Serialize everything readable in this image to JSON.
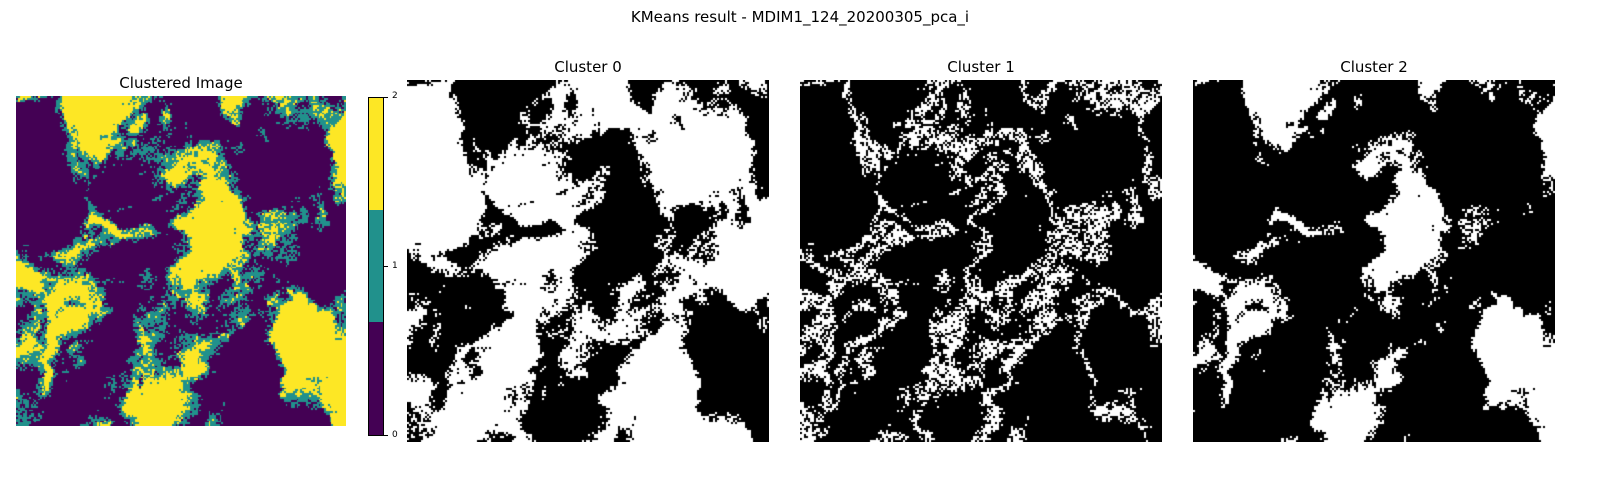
{
  "figure": {
    "suptitle": "KMeans result - MDIM1_124_20200305_pca_i"
  },
  "chart_data": [
    {
      "type": "heatmap",
      "title": "Clustered Image",
      "value_range": [
        0,
        2
      ],
      "n_clusters": 3,
      "axes_visible": false,
      "colorbar": {
        "ticks": [
          "0",
          "1",
          "2"
        ],
        "colors": [
          "#440154",
          "#21918c",
          "#fde725"
        ]
      },
      "approx_cluster_fraction": [
        0.55,
        0.2,
        0.25
      ]
    },
    {
      "type": "heatmap",
      "title": "Cluster 0",
      "binary_mask_cluster": 0,
      "axes_visible": false,
      "colors": {
        "in_cluster": "#ffffff",
        "other": "#000000"
      }
    },
    {
      "type": "heatmap",
      "title": "Cluster 1",
      "binary_mask_cluster": 1,
      "axes_visible": false,
      "colors": {
        "in_cluster": "#ffffff",
        "other": "#000000"
      }
    },
    {
      "type": "heatmap",
      "title": "Cluster 2",
      "binary_mask_cluster": 2,
      "axes_visible": false,
      "colors": {
        "in_cluster": "#ffffff",
        "other": "#000000"
      }
    }
  ]
}
